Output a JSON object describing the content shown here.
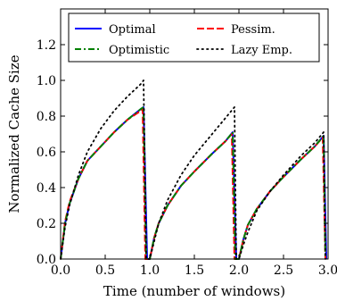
{
  "chart_data": {
    "type": "line",
    "xlabel": "Time (number of windows)",
    "ylabel": "Normalized Cache Size",
    "xlim": [
      0,
      3
    ],
    "ylim": [
      0,
      1.4
    ],
    "x_ticks": [
      0.0,
      0.5,
      1.0,
      1.5,
      2.0,
      2.5,
      3.0
    ],
    "x_tick_labels": [
      "0.0",
      "0.5",
      "1.0",
      "1.5",
      "2.0",
      "2.5",
      "3.0"
    ],
    "y_ticks": [
      0.0,
      0.2,
      0.4,
      0.6,
      0.8,
      1.0,
      1.2
    ],
    "y_tick_labels": [
      "0.0",
      "0.2",
      "0.4",
      "0.6",
      "0.8",
      "1.0",
      "1.2"
    ],
    "grid": false,
    "legend_position": "top",
    "series": [
      {
        "name": "Optimal",
        "color": "#0000ff",
        "style": "solid",
        "points": [
          [
            0,
            0
          ],
          [
            0.05,
            0.2
          ],
          [
            0.1,
            0.31
          ],
          [
            0.2,
            0.45
          ],
          [
            0.3,
            0.55
          ],
          [
            0.45,
            0.63
          ],
          [
            0.6,
            0.71
          ],
          [
            0.75,
            0.78
          ],
          [
            0.9,
            0.84
          ],
          [
            0.93,
            0.85
          ],
          [
            0.97,
            0.0
          ],
          [
            1.0,
            0.0
          ],
          [
            1.05,
            0.12
          ],
          [
            1.1,
            0.2
          ],
          [
            1.2,
            0.3
          ],
          [
            1.35,
            0.41
          ],
          [
            1.5,
            0.49
          ],
          [
            1.7,
            0.59
          ],
          [
            1.85,
            0.66
          ],
          [
            1.93,
            0.71
          ],
          [
            1.97,
            0.0
          ],
          [
            2.0,
            0.0
          ],
          [
            2.05,
            0.11
          ],
          [
            2.1,
            0.19
          ],
          [
            2.2,
            0.28
          ],
          [
            2.35,
            0.38
          ],
          [
            2.5,
            0.46
          ],
          [
            2.7,
            0.56
          ],
          [
            2.85,
            0.63
          ],
          [
            2.95,
            0.69
          ],
          [
            2.98,
            0.0
          ]
        ]
      },
      {
        "name": "Pessim.",
        "color": "#ff0000",
        "style": "dashed",
        "points": [
          [
            0,
            0
          ],
          [
            0.05,
            0.21
          ],
          [
            0.1,
            0.32
          ],
          [
            0.2,
            0.45
          ],
          [
            0.3,
            0.55
          ],
          [
            0.45,
            0.63
          ],
          [
            0.6,
            0.71
          ],
          [
            0.75,
            0.78
          ],
          [
            0.9,
            0.83
          ],
          [
            0.92,
            0.84
          ],
          [
            0.95,
            0.0
          ],
          [
            1.0,
            0.0
          ],
          [
            1.05,
            0.12
          ],
          [
            1.1,
            0.2
          ],
          [
            1.2,
            0.3
          ],
          [
            1.35,
            0.41
          ],
          [
            1.5,
            0.49
          ],
          [
            1.7,
            0.59
          ],
          [
            1.85,
            0.66
          ],
          [
            1.92,
            0.7
          ],
          [
            1.95,
            0.0
          ],
          [
            2.0,
            0.0
          ],
          [
            2.05,
            0.11
          ],
          [
            2.1,
            0.19
          ],
          [
            2.2,
            0.28
          ],
          [
            2.35,
            0.38
          ],
          [
            2.5,
            0.46
          ],
          [
            2.7,
            0.56
          ],
          [
            2.85,
            0.63
          ],
          [
            2.94,
            0.68
          ],
          [
            2.97,
            0.0
          ]
        ]
      },
      {
        "name": "Optimistic",
        "color": "#008000",
        "style": "dashdot",
        "points": [
          [
            0,
            0
          ],
          [
            0.05,
            0.2
          ],
          [
            0.1,
            0.31
          ],
          [
            0.2,
            0.45
          ],
          [
            0.3,
            0.55
          ],
          [
            0.45,
            0.63
          ],
          [
            0.6,
            0.71
          ],
          [
            0.75,
            0.78
          ],
          [
            0.9,
            0.84
          ],
          [
            0.93,
            0.85
          ],
          [
            0.96,
            0.0
          ],
          [
            1.0,
            0.0
          ],
          [
            1.05,
            0.12
          ],
          [
            1.1,
            0.2
          ],
          [
            1.2,
            0.3
          ],
          [
            1.35,
            0.41
          ],
          [
            1.5,
            0.49
          ],
          [
            1.7,
            0.59
          ],
          [
            1.85,
            0.66
          ],
          [
            1.93,
            0.71
          ],
          [
            1.96,
            0.0
          ],
          [
            2.0,
            0.0
          ],
          [
            2.05,
            0.11
          ],
          [
            2.1,
            0.19
          ],
          [
            2.2,
            0.28
          ],
          [
            2.35,
            0.38
          ],
          [
            2.5,
            0.46
          ],
          [
            2.7,
            0.56
          ],
          [
            2.85,
            0.63
          ],
          [
            2.95,
            0.69
          ],
          [
            2.97,
            0.0
          ]
        ]
      },
      {
        "name": "Lazy Emp.",
        "color": "#000000",
        "style": "dotted",
        "points": [
          [
            0,
            0
          ],
          [
            0.05,
            0.18
          ],
          [
            0.1,
            0.3
          ],
          [
            0.2,
            0.47
          ],
          [
            0.3,
            0.6
          ],
          [
            0.45,
            0.73
          ],
          [
            0.6,
            0.83
          ],
          [
            0.75,
            0.91
          ],
          [
            0.9,
            0.98
          ],
          [
            0.93,
            1.0
          ],
          [
            0.96,
            0.0
          ],
          [
            1.0,
            0.0
          ],
          [
            1.05,
            0.1
          ],
          [
            1.1,
            0.2
          ],
          [
            1.2,
            0.33
          ],
          [
            1.35,
            0.47
          ],
          [
            1.5,
            0.58
          ],
          [
            1.7,
            0.7
          ],
          [
            1.85,
            0.79
          ],
          [
            1.95,
            0.85
          ],
          [
            1.97,
            0.0
          ],
          [
            2.0,
            0.0
          ],
          [
            2.05,
            0.08
          ],
          [
            2.1,
            0.15
          ],
          [
            2.2,
            0.27
          ],
          [
            2.35,
            0.38
          ],
          [
            2.5,
            0.47
          ],
          [
            2.7,
            0.58
          ],
          [
            2.85,
            0.65
          ],
          [
            2.95,
            0.71
          ],
          [
            2.97,
            0.0
          ]
        ]
      }
    ]
  }
}
